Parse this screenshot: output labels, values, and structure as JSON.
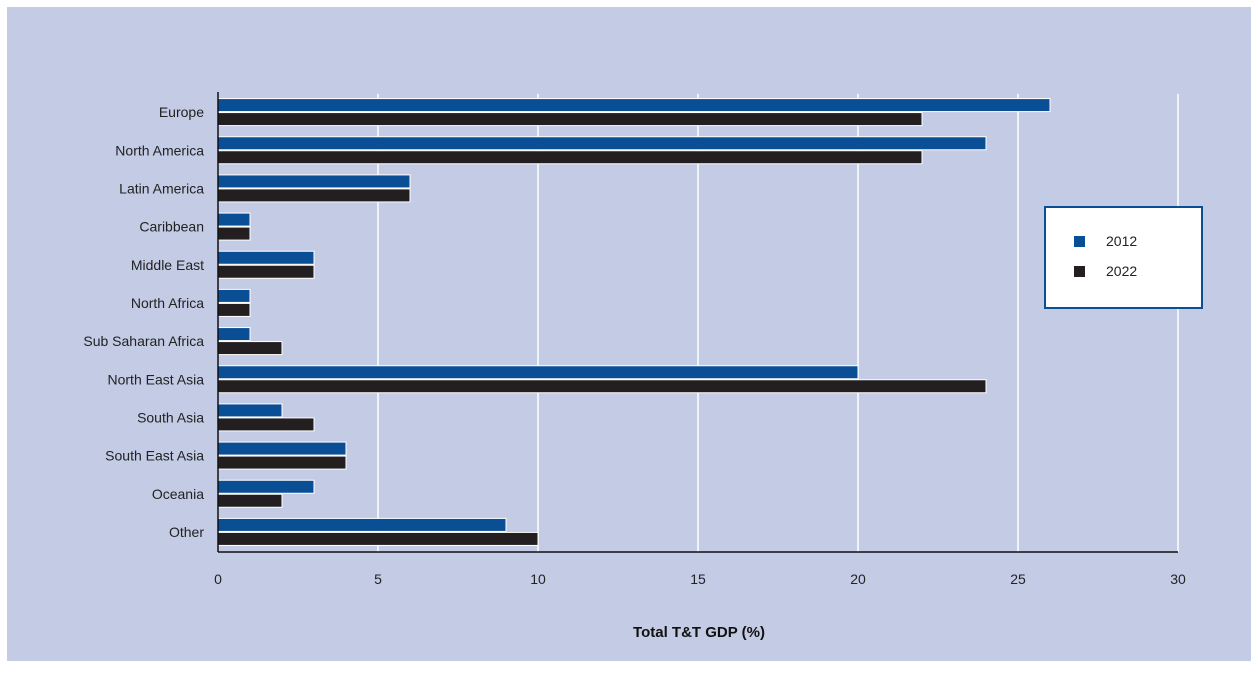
{
  "chart_data": {
    "type": "bar",
    "orientation": "horizontal",
    "categories": [
      "Europe",
      "North America",
      "Latin America",
      "Caribbean",
      "Middle East",
      "North Africa",
      "Sub Saharan Africa",
      "North East Asia",
      "South Asia",
      "South East Asia",
      "Oceania",
      "Other"
    ],
    "series": [
      {
        "name": "2012",
        "color": "#0a4f96",
        "values": [
          26,
          24,
          6,
          1,
          3,
          1,
          1,
          20,
          2,
          4,
          3,
          9
        ]
      },
      {
        "name": "2022",
        "color": "#231f20",
        "values": [
          22,
          22,
          6,
          1,
          3,
          1,
          2,
          24,
          3,
          4,
          2,
          10
        ]
      }
    ],
    "xlabel": "Total T&T GDP (%)",
    "ylabel": "",
    "xlim": [
      0,
      30
    ],
    "xticks": [
      0,
      5,
      10,
      15,
      20,
      25,
      30
    ],
    "grid": true,
    "legend": "right",
    "colors": {
      "background": "#c4cbe5",
      "gridline": "#ffffff",
      "legend_border": "#0a4f96"
    }
  }
}
